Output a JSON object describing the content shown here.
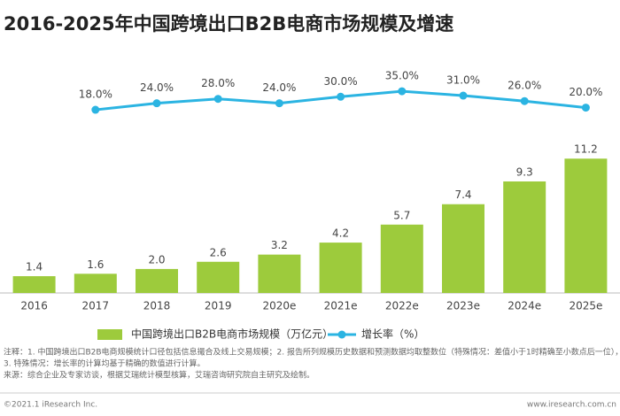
{
  "chart_data": {
    "type": "bar",
    "title": "2016-2025年中国跨境出口B2B电商市场规模及增速",
    "categories": [
      "2016",
      "2017",
      "2018",
      "2019",
      "2020e",
      "2021e",
      "2022e",
      "2023e",
      "2024e",
      "2025e"
    ],
    "series": [
      {
        "name": "中国跨境出口B2B电商市场规模（万亿元）",
        "type": "bar",
        "color": "#9dcb3c",
        "values": [
          1.4,
          1.6,
          2,
          2.6,
          3.2,
          4.2,
          5.7,
          7.4,
          9.3,
          11.2
        ],
        "value_labels": [
          "1.4",
          "1.6",
          "2.0",
          "2.6",
          "3.2",
          "4.2",
          "5.7",
          "7.4",
          "9.3",
          "11.2"
        ]
      },
      {
        "name": "增长率（%）",
        "type": "line",
        "axis": "y2",
        "color": "#2bb4e2",
        "values": [
          null,
          18,
          24,
          28,
          24,
          30,
          35,
          31,
          26,
          20
        ],
        "value_labels": [
          null,
          "18.0%",
          "24.0%",
          "28.0%",
          "24.0%",
          "30.0%",
          "35.0%",
          "31.0%",
          "26.0%",
          "20.0%"
        ]
      }
    ],
    "ylim": [
      0,
      20
    ],
    "y2lim": [
      -150,
      70
    ],
    "notes": [
      "注释：1. 中国跨境出口B2B电商规模统计口径包括信息撮合及线上交易规模；2. 报告所列规模历史数据和预测数据均取整数位（特殊情况：差值小于1时精确至小数点后一位），",
      "3. 特殊情况：增长率的计算均基于精确的数值进行计算。",
      "来源：综合企业及专家访谈，根据艾瑞统计模型核算，艾瑞咨询研究院自主研究及绘制。"
    ],
    "footer_left": "©2021.1 iResearch Inc.",
    "footer_right": "www.iresearch.com.cn"
  }
}
